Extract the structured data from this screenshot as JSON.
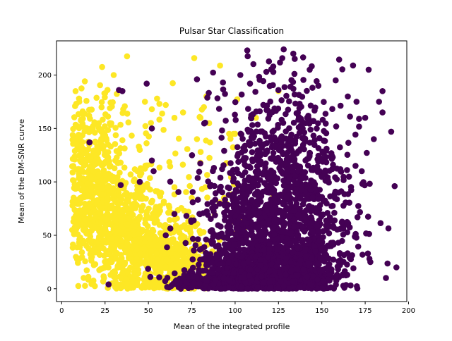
{
  "chart_data": {
    "type": "scatter",
    "title": "Pulsar Star Classification",
    "xlabel": "Mean of the integrated profile",
    "ylabel": "Mean of the DM-SNR curve",
    "xlim": [
      -3,
      199
    ],
    "ylim": [
      -12,
      232
    ],
    "xticks": [
      0,
      25,
      50,
      75,
      100,
      125,
      150,
      175,
      200
    ],
    "yticks": [
      0,
      50,
      100,
      150,
      200
    ],
    "grid": false,
    "legend": "none",
    "colors": {
      "class_yellow": "#fde725",
      "class_purple": "#440154"
    },
    "series": [
      {
        "color": "#fde725",
        "clusters": [
          {
            "cx": 18,
            "cy": 95,
            "sx": 8,
            "sy": 40,
            "n": 380,
            "seed": 11
          },
          {
            "cx": 35,
            "cy": 60,
            "sx": 12,
            "sy": 30,
            "n": 420,
            "seed": 12
          },
          {
            "cx": 50,
            "cy": 35,
            "sx": 14,
            "sy": 22,
            "n": 360,
            "seed": 13
          },
          {
            "cx": 68,
            "cy": 25,
            "sx": 10,
            "sy": 18,
            "n": 220,
            "seed": 14
          },
          {
            "cx": 85,
            "cy": 110,
            "sx": 18,
            "sy": 45,
            "n": 60,
            "seed": 15
          },
          {
            "cx": 20,
            "cy": 150,
            "sx": 10,
            "sy": 18,
            "n": 70,
            "seed": 16
          }
        ],
        "points": [
          {
            "x": 8,
            "y": 185
          },
          {
            "x": 10,
            "y": 178
          },
          {
            "x": 30,
            "y": 200
          },
          {
            "x": 25,
            "y": 183
          },
          {
            "x": 48,
            "y": 175
          },
          {
            "x": 52,
            "y": 168
          },
          {
            "x": 55,
            "y": 178
          },
          {
            "x": 60,
            "y": 172
          },
          {
            "x": 65,
            "y": 160
          },
          {
            "x": 70,
            "y": 165
          },
          {
            "x": 82,
            "y": 170
          },
          {
            "x": 80,
            "y": 160
          },
          {
            "x": 85,
            "y": 155
          },
          {
            "x": 78,
            "y": 140
          },
          {
            "x": 100,
            "y": 145
          },
          {
            "x": 95,
            "y": 80
          },
          {
            "x": 105,
            "y": 65
          },
          {
            "x": 105,
            "y": 55
          },
          {
            "x": 110,
            "y": 50
          },
          {
            "x": 112,
            "y": 160
          },
          {
            "x": 125,
            "y": 185
          },
          {
            "x": 45,
            "y": 130
          },
          {
            "x": 65,
            "y": 95
          },
          {
            "x": 75,
            "y": 85
          }
        ]
      },
      {
        "color": "#440154",
        "clusters": [
          {
            "cx": 118,
            "cy": 15,
            "sx": 20,
            "sy": 12,
            "n": 900,
            "seed": 21
          },
          {
            "cx": 125,
            "cy": 55,
            "sx": 18,
            "sy": 35,
            "n": 650,
            "seed": 22
          },
          {
            "cx": 128,
            "cy": 120,
            "sx": 18,
            "sy": 40,
            "n": 420,
            "seed": 23
          },
          {
            "cx": 100,
            "cy": 60,
            "sx": 14,
            "sy": 35,
            "n": 220,
            "seed": 24
          },
          {
            "cx": 150,
            "cy": 50,
            "sx": 14,
            "sy": 40,
            "n": 200,
            "seed": 25
          },
          {
            "cx": 95,
            "cy": 6,
            "sx": 14,
            "sy": 5,
            "n": 220,
            "seed": 26
          }
        ],
        "points": [
          {
            "x": 107,
            "y": 223
          },
          {
            "x": 128,
            "y": 224
          },
          {
            "x": 33,
            "y": 186
          },
          {
            "x": 49,
            "y": 192
          },
          {
            "x": 78,
            "y": 196
          },
          {
            "x": 93,
            "y": 193
          },
          {
            "x": 103,
            "y": 200
          },
          {
            "x": 118,
            "y": 203
          },
          {
            "x": 122,
            "y": 208
          },
          {
            "x": 143,
            "y": 205
          },
          {
            "x": 168,
            "y": 209
          },
          {
            "x": 177,
            "y": 205
          },
          {
            "x": 190,
            "y": 147
          },
          {
            "x": 192,
            "y": 96
          },
          {
            "x": 193,
            "y": 20
          },
          {
            "x": 187,
            "y": 10
          },
          {
            "x": 178,
            "y": 25
          },
          {
            "x": 173,
            "y": 110
          },
          {
            "x": 180,
            "y": 140
          },
          {
            "x": 183,
            "y": 175
          },
          {
            "x": 185,
            "y": 185
          },
          {
            "x": 185,
            "y": 165
          },
          {
            "x": 175,
            "y": 160
          },
          {
            "x": 170,
            "y": 175
          },
          {
            "x": 165,
            "y": 180
          },
          {
            "x": 158,
            "y": 195
          },
          {
            "x": 148,
            "y": 190
          },
          {
            "x": 27,
            "y": 4
          },
          {
            "x": 52,
            "y": 150
          },
          {
            "x": 52,
            "y": 120
          },
          {
            "x": 53,
            "y": 110
          },
          {
            "x": 45,
            "y": 100
          },
          {
            "x": 34,
            "y": 97
          },
          {
            "x": 16,
            "y": 137
          },
          {
            "x": 35,
            "y": 185
          },
          {
            "x": 60,
            "y": 50
          },
          {
            "x": 68,
            "y": 5
          },
          {
            "x": 65,
            "y": 70
          }
        ]
      }
    ]
  }
}
